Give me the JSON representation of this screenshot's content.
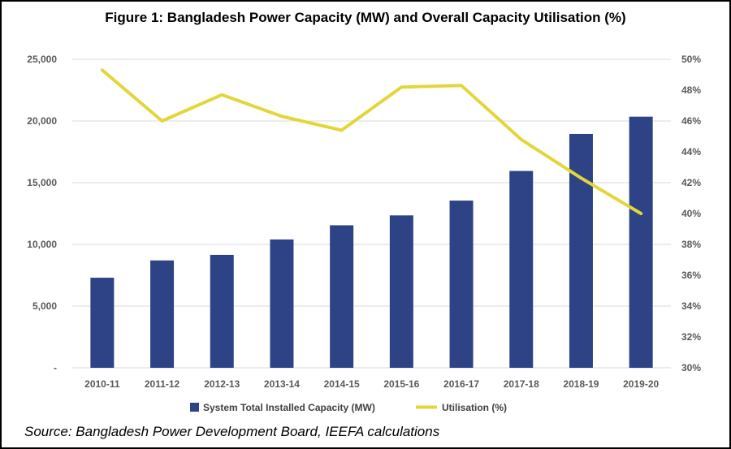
{
  "title": "Figure 1: Bangladesh Power Capacity (MW) and Overall Capacity Utilisation (%)",
  "source": "Source: Bangladesh Power Development Board, IEEFA calculations",
  "colors": {
    "bar": "#2e4385",
    "line": "#e3d63b",
    "grid": "#d9d9d9",
    "axis_text": "#595959"
  },
  "chart_data": {
    "type": "bar",
    "categories": [
      "2010-11",
      "2011-12",
      "2012-13",
      "2013-14",
      "2014-15",
      "2015-16",
      "2016-17",
      "2017-18",
      "2018-19",
      "2019-20"
    ],
    "series": [
      {
        "name": "System Total Installed Capacity (MW)",
        "type": "bar",
        "axis": "left",
        "values": [
          7300,
          8700,
          9150,
          10400,
          11550,
          12350,
          13550,
          15950,
          18950,
          20350
        ]
      },
      {
        "name": "Utilisation (%)",
        "type": "line",
        "axis": "right",
        "values": [
          49.3,
          46.0,
          47.7,
          46.3,
          45.4,
          48.2,
          48.3,
          44.8,
          42.3,
          40.0
        ]
      }
    ],
    "y_left": {
      "min": 0,
      "max": 25000,
      "ticks": [
        "-",
        "5,000",
        "10,000",
        "15,000",
        "20,000",
        "25,000"
      ]
    },
    "y_right": {
      "min": 30,
      "max": 50,
      "ticks": [
        "30%",
        "32%",
        "34%",
        "36%",
        "38%",
        "40%",
        "42%",
        "44%",
        "46%",
        "48%",
        "50%"
      ]
    },
    "grid": true,
    "legend_position": "bottom"
  }
}
